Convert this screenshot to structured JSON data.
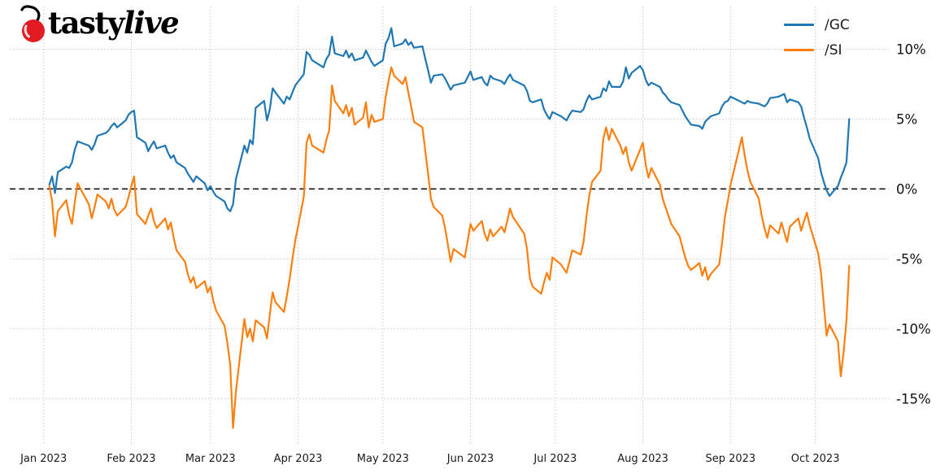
{
  "logo": {
    "brand_prefix": "tasty",
    "brand_suffix": "live",
    "text_color": "#000000",
    "cherry_color": "#e31b23",
    "cherry_icon": "cherry-icon"
  },
  "chart_data": {
    "type": "line",
    "title": "",
    "xlabel": "",
    "ylabel": "",
    "x_unit": "day_of_year_2023",
    "x_range": [
      -11,
      300
    ],
    "y_range": [
      -18.3,
      13.05
    ],
    "grid": {
      "show": true,
      "style": "dotted",
      "color": "#c9c9c9"
    },
    "zero_line": {
      "value": 0,
      "style": "dashed",
      "color": "#000000"
    },
    "x_tick_days": [
      1,
      32,
      60,
      91,
      121,
      152,
      182,
      213,
      244,
      274
    ],
    "x_tick_labels": [
      "Jan 2023",
      "Feb 2023",
      "Mar 2023",
      "Apr 2023",
      "May 2023",
      "Jun 2023",
      "Jul 2023",
      "Aug 2023",
      "Sep 2023",
      "Oct 2023"
    ],
    "y_ticks": [
      10,
      5,
      0,
      -5,
      -10,
      -15
    ],
    "y_tick_labels": [
      "10%",
      "5%",
      "0%",
      "-5%",
      "-10%",
      "-15%"
    ],
    "legend": {
      "position": "top-right",
      "entries": [
        {
          "label": "/GC",
          "color": "#1f77b4"
        },
        {
          "label": "/SI",
          "color": "#ff7f0e"
        }
      ]
    },
    "x": [
      3,
      4,
      5,
      6,
      9,
      10,
      11,
      12,
      13,
      17,
      18,
      19,
      20,
      23,
      24,
      25,
      26,
      27,
      30,
      31,
      32,
      33,
      34,
      37,
      38,
      39,
      40,
      41,
      44,
      45,
      46,
      47,
      48,
      51,
      52,
      53,
      54,
      55,
      58,
      59,
      60,
      61,
      62,
      65,
      66,
      67,
      68,
      69,
      72,
      73,
      74,
      75,
      76,
      79,
      80,
      81,
      82,
      83,
      86,
      87,
      88,
      89,
      90,
      93,
      94,
      95,
      96,
      100,
      101,
      102,
      103,
      104,
      107,
      108,
      109,
      110,
      111,
      114,
      115,
      116,
      117,
      118,
      121,
      122,
      123,
      124,
      125,
      128,
      129,
      130,
      131,
      132,
      135,
      136,
      137,
      138,
      139,
      142,
      143,
      144,
      145,
      146,
      150,
      151,
      152,
      153,
      156,
      157,
      158,
      159,
      160,
      163,
      164,
      165,
      166,
      167,
      171,
      172,
      173,
      174,
      177,
      178,
      179,
      180,
      181,
      184,
      186,
      187,
      188,
      191,
      192,
      193,
      194,
      195,
      198,
      199,
      200,
      201,
      202,
      205,
      206,
      207,
      208,
      209,
      212,
      213,
      214,
      215,
      216,
      219,
      220,
      221,
      222,
      223,
      226,
      227,
      228,
      229,
      230,
      233,
      234,
      235,
      236,
      237,
      240,
      241,
      242,
      243,
      244,
      248,
      249,
      250,
      251,
      254,
      255,
      256,
      257,
      258,
      261,
      262,
      263,
      264,
      265,
      268,
      269,
      270,
      271,
      272,
      275,
      276,
      277,
      278,
      279,
      282,
      283,
      284,
      285,
      286
    ],
    "series": [
      {
        "name": "/GC",
        "color": "#1f77b4",
        "values": [
          0.3,
          0.9,
          -0.3,
          1.2,
          1.6,
          1.5,
          1.9,
          2.8,
          3.4,
          3.1,
          2.8,
          3.2,
          3.8,
          4.0,
          4.2,
          4.5,
          4.7,
          4.4,
          4.9,
          5.3,
          5.5,
          5.6,
          3.7,
          3.3,
          2.7,
          3.1,
          3.4,
          2.9,
          3.1,
          2.6,
          2.2,
          2.4,
          1.9,
          1.5,
          1.1,
          0.8,
          0.5,
          0.9,
          0.4,
          -0.1,
          0.2,
          -0.2,
          -0.5,
          -0.9,
          -1.4,
          -1.6,
          -1.1,
          0.7,
          3.1,
          2.6,
          3.5,
          3.2,
          5.8,
          6.3,
          4.9,
          5.7,
          7.2,
          6.9,
          6.1,
          6.6,
          6.4,
          6.9,
          7.4,
          8.2,
          9.8,
          9.6,
          9.2,
          8.7,
          9.3,
          9.6,
          10.9,
          9.7,
          9.5,
          9.9,
          9.4,
          9.7,
          9.2,
          9.4,
          9.9,
          9.5,
          9.1,
          8.8,
          9.2,
          10.4,
          10.8,
          11.5,
          10.2,
          10.4,
          10.7,
          10.3,
          10.5,
          10.1,
          10.2,
          9.3,
          8.5,
          7.6,
          8.1,
          8.2,
          7.9,
          7.5,
          7.1,
          7.4,
          7.6,
          8.0,
          8.4,
          7.8,
          8.0,
          7.6,
          7.4,
          8.1,
          7.9,
          7.7,
          7.5,
          7.9,
          8.2,
          7.8,
          7.4,
          7.0,
          6.3,
          6.2,
          6.4,
          5.7,
          5.3,
          5.0,
          5.5,
          5.2,
          4.9,
          5.3,
          5.6,
          5.5,
          5.7,
          6.3,
          6.7,
          6.4,
          6.6,
          7.2,
          7.0,
          7.7,
          7.3,
          7.3,
          7.7,
          8.7,
          7.9,
          8.3,
          8.8,
          8.5,
          7.8,
          7.4,
          7.6,
          7.3,
          6.9,
          6.7,
          6.4,
          6.2,
          6.0,
          5.6,
          5.2,
          4.9,
          4.6,
          4.5,
          4.3,
          4.8,
          5.0,
          5.2,
          5.4,
          5.9,
          6.2,
          6.3,
          6.6,
          6.2,
          6.1,
          6.3,
          6.2,
          6.1,
          6.0,
          5.9,
          6.1,
          6.5,
          6.6,
          6.7,
          6.8,
          6.2,
          6.4,
          6.2,
          5.9,
          5.1,
          4.4,
          3.6,
          2.2,
          1.2,
          0.5,
          -0.1,
          -0.5,
          0.2,
          0.8,
          1.3,
          1.9,
          5.0
        ]
      },
      {
        "name": "/SI",
        "color": "#ff7f0e",
        "values": [
          0.2,
          -0.9,
          -3.4,
          -1.6,
          -0.8,
          -1.9,
          -2.5,
          -1.0,
          0.4,
          -1.1,
          -2.1,
          -1.3,
          -0.4,
          -0.9,
          -1.4,
          -0.7,
          -1.5,
          -1.9,
          -1.3,
          -0.6,
          0.2,
          0.9,
          -1.8,
          -2.5,
          -1.9,
          -1.4,
          -2.3,
          -2.8,
          -2.1,
          -2.9,
          -2.4,
          -3.5,
          -4.4,
          -5.2,
          -6.1,
          -6.7,
          -6.3,
          -7.1,
          -6.6,
          -7.4,
          -7.0,
          -8.0,
          -8.7,
          -9.8,
          -11.0,
          -12.6,
          -17.1,
          -14.5,
          -9.3,
          -10.6,
          -10.0,
          -10.9,
          -9.4,
          -9.9,
          -10.7,
          -9.0,
          -7.4,
          -8.1,
          -8.8,
          -7.7,
          -6.5,
          -5.0,
          -3.7,
          -0.6,
          3.3,
          3.9,
          3.1,
          2.6,
          3.5,
          4.2,
          7.4,
          6.3,
          5.4,
          6.0,
          5.2,
          5.8,
          4.6,
          5.1,
          6.2,
          4.4,
          5.3,
          4.8,
          5.0,
          6.6,
          7.7,
          8.7,
          8.1,
          7.5,
          8.0,
          6.9,
          5.9,
          4.8,
          4.4,
          2.7,
          1.1,
          -0.7,
          -1.3,
          -1.9,
          -2.8,
          -4.0,
          -5.2,
          -4.3,
          -4.9,
          -3.7,
          -2.5,
          -3.0,
          -2.3,
          -3.2,
          -3.7,
          -2.9,
          -3.4,
          -2.7,
          -3.1,
          -2.3,
          -1.4,
          -2.0,
          -3.2,
          -4.3,
          -6.4,
          -7.0,
          -7.5,
          -6.7,
          -6.0,
          -6.5,
          -4.9,
          -5.4,
          -6.0,
          -5.2,
          -4.4,
          -4.7,
          -3.8,
          -2.0,
          -0.5,
          0.5,
          1.3,
          3.6,
          4.4,
          3.5,
          4.3,
          3.1,
          2.5,
          3.0,
          1.9,
          1.3,
          2.8,
          3.3,
          1.7,
          0.8,
          1.5,
          0.3,
          -0.7,
          -1.3,
          -1.9,
          -2.5,
          -3.4,
          -4.2,
          -4.9,
          -5.5,
          -5.8,
          -5.3,
          -6.2,
          -5.6,
          -6.5,
          -6.1,
          -5.4,
          -3.9,
          -2.0,
          -0.9,
          0.3,
          3.7,
          2.4,
          1.3,
          0.5,
          -0.7,
          -1.9,
          -2.8,
          -3.5,
          -2.6,
          -3.2,
          -2.4,
          -3.1,
          -3.8,
          -2.7,
          -2.1,
          -3.0,
          -2.3,
          -1.7,
          -2.6,
          -4.6,
          -6.0,
          -8.3,
          -10.5,
          -9.7,
          -10.9,
          -13.4,
          -11.7,
          -9.4,
          -5.5
        ]
      }
    ]
  }
}
